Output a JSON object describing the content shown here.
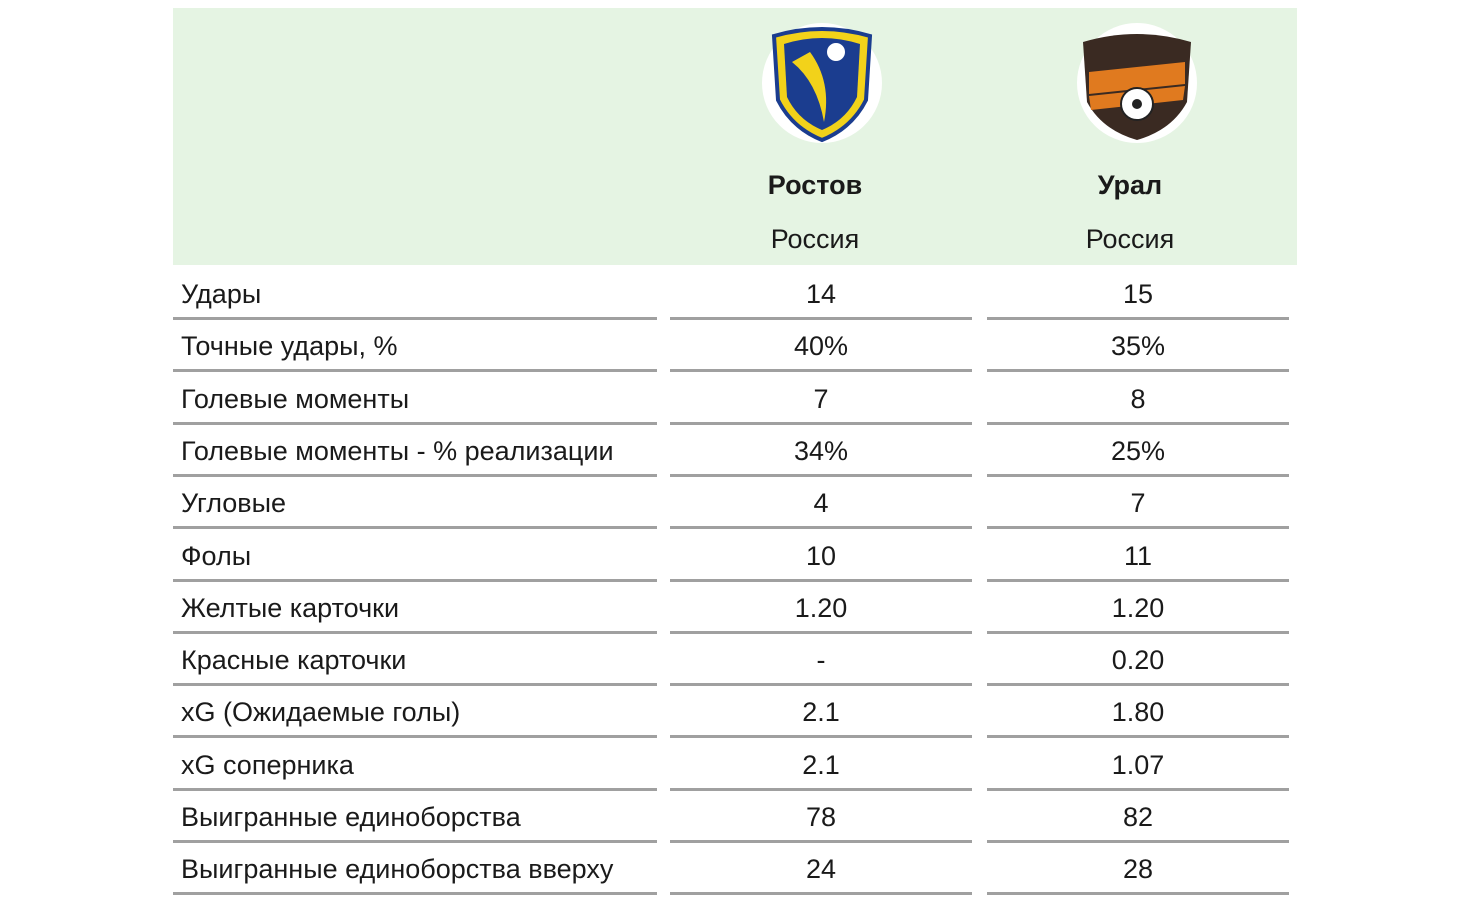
{
  "table": {
    "teams": [
      {
        "name": "Ростов",
        "country": "Россия"
      },
      {
        "name": "Урал",
        "country": "Россия"
      }
    ],
    "rows": [
      [
        "Удары",
        "14",
        "15"
      ],
      [
        "Точные удары, %",
        "40%",
        "35%"
      ],
      [
        "Голевые моменты",
        "7",
        "8"
      ],
      [
        "Голевые моменты - % реализации",
        "34%",
        "25%"
      ],
      [
        "Угловые",
        "4",
        "7"
      ],
      [
        "Фолы",
        "10",
        "11"
      ],
      [
        "Желтые карточки",
        "1.20",
        "1.20"
      ],
      [
        "Красные карточки",
        "-",
        "0.20"
      ],
      [
        "xG (Ожидаемые голы)",
        "2.1",
        "1.80"
      ],
      [
        "xG соперника",
        "2.1",
        "1.07"
      ],
      [
        "Выигранные единоборства",
        "78",
        "82"
      ],
      [
        "Выигранные единоборства вверху",
        "24",
        "28"
      ]
    ]
  }
}
